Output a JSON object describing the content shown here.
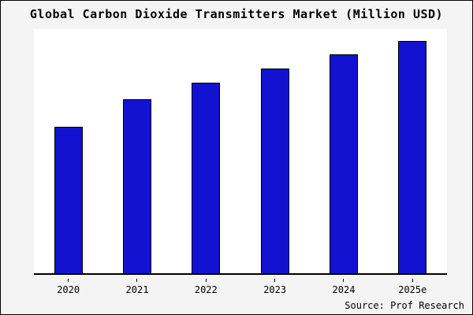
{
  "title": "Global Carbon Dioxide Transmitters Market (Million USD)",
  "source": "Source: Prof Research",
  "colors": {
    "bar_fill": "#1212d0",
    "bar_border": "#000000",
    "page_bg": "#f4f4f4",
    "plot_bg": "#ffffff",
    "axis": "#000000"
  },
  "chart_data": {
    "type": "bar",
    "categories": [
      "2020",
      "2021",
      "2022",
      "2023",
      "2024",
      "2025e"
    ],
    "values": [
      63,
      75,
      82,
      88,
      94,
      100
    ],
    "title": "Global Carbon Dioxide Transmitters Market (Million USD)",
    "xlabel": "",
    "ylabel": "",
    "ylim": [
      0,
      105
    ],
    "grid": false,
    "legend": false,
    "source": "Source: Prof Research"
  }
}
